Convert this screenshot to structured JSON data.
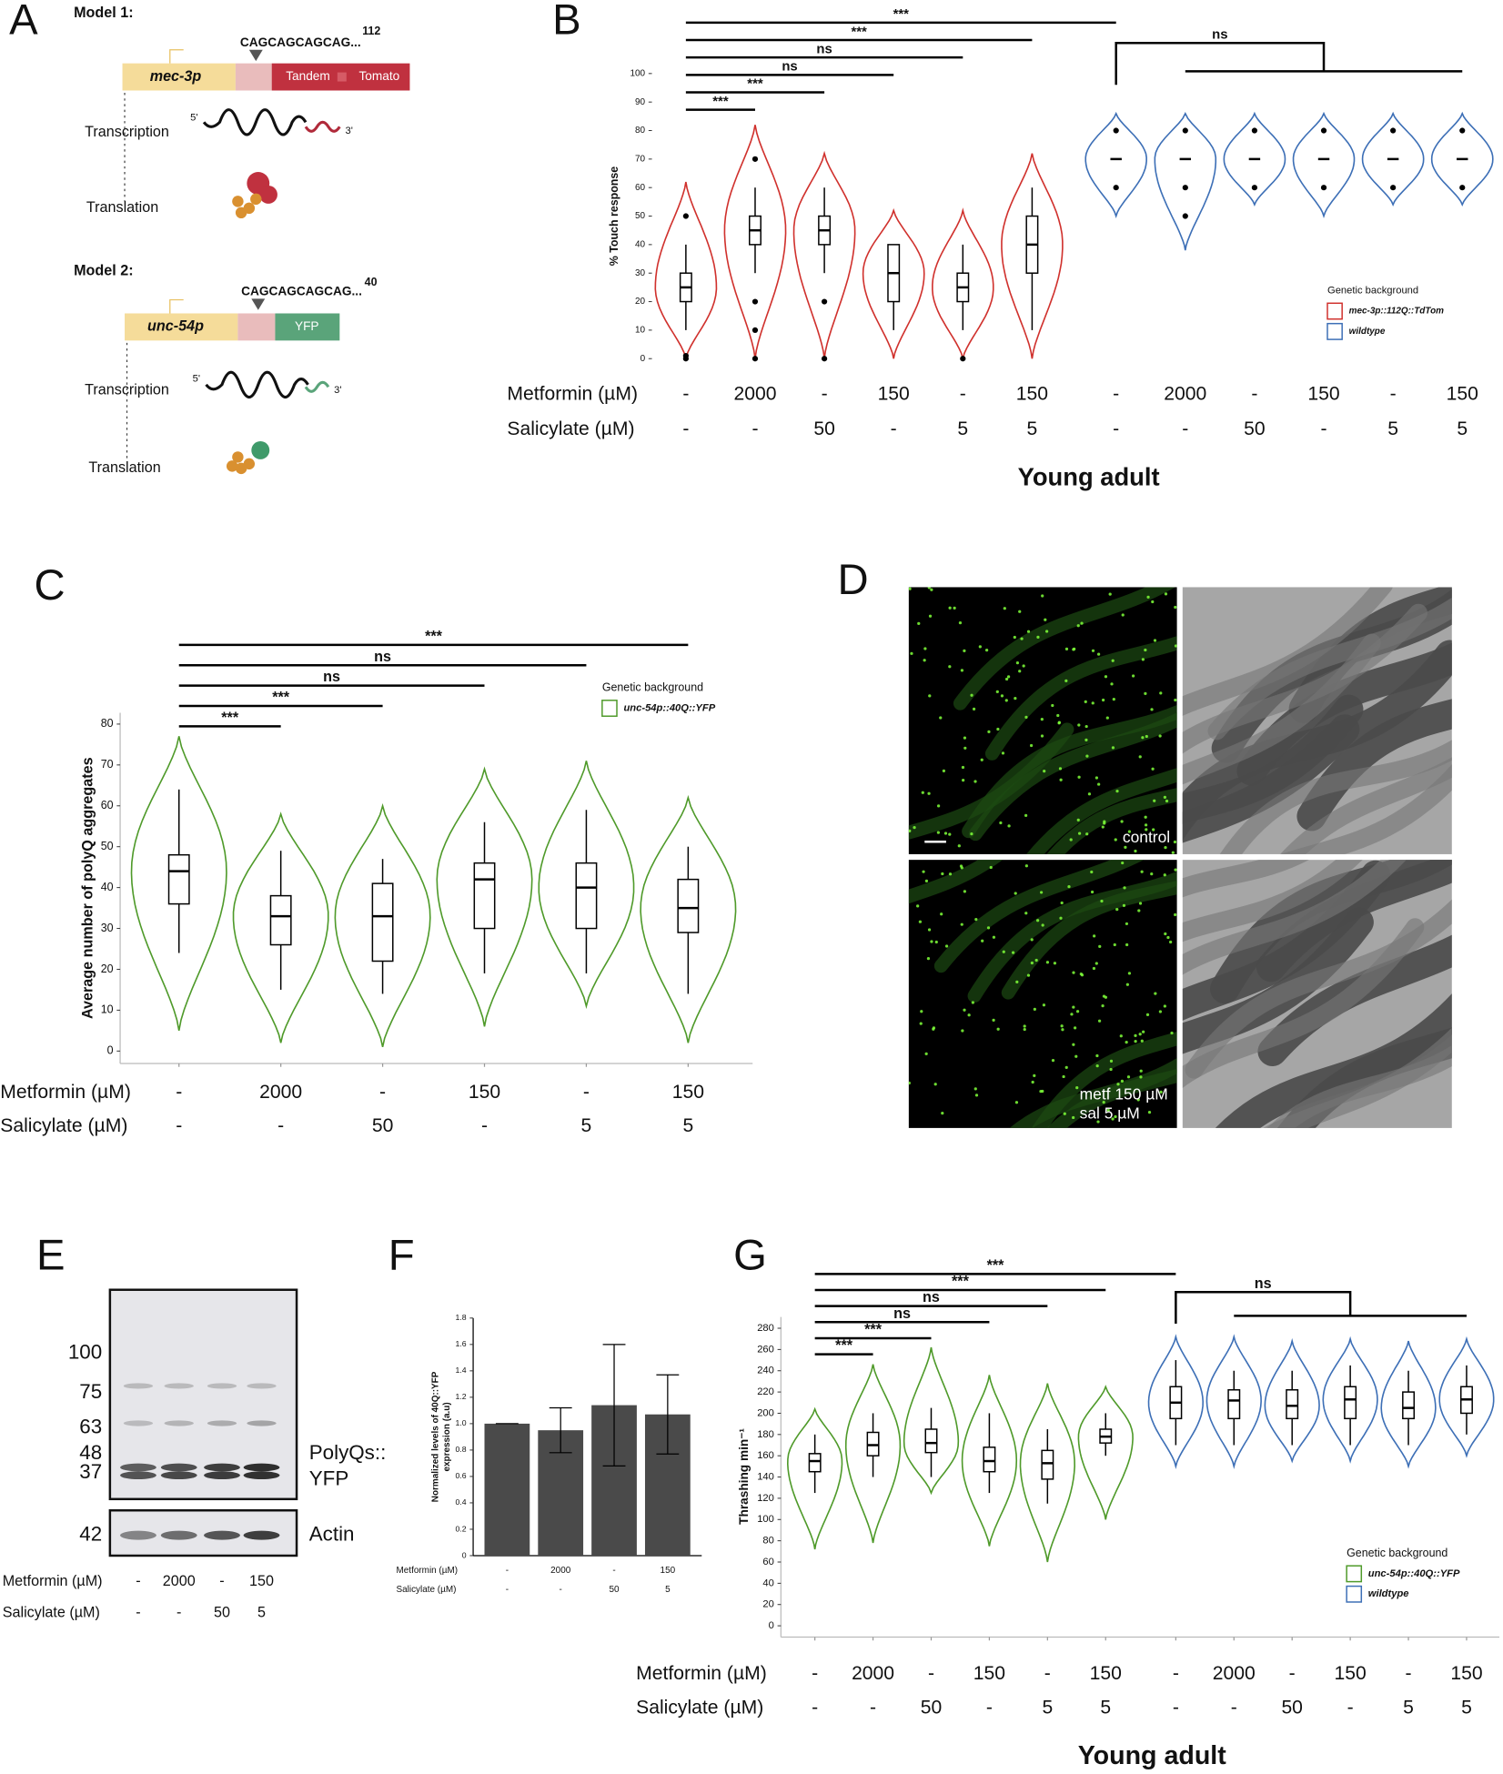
{
  "panels": {
    "labels": [
      "A",
      "B",
      "C",
      "D",
      "E",
      "F",
      "G"
    ]
  },
  "model1": {
    "title": "Model 1:",
    "sequence": "CAGCAGCAGCAG...",
    "repeats": "112",
    "promoter": "mec-3p",
    "tag": [
      "Tandem",
      "Tomato"
    ],
    "steps": [
      "Transcription",
      "Translation"
    ],
    "ends": [
      "5'",
      "3'"
    ]
  },
  "model2": {
    "title": "Model 2:",
    "sequence": "CAGCAGCAGCAG...",
    "repeats": "40",
    "promoter": "unc-54p",
    "tag": "YFP",
    "steps": [
      "Transcription",
      "Translation"
    ],
    "ends": [
      "5'",
      "3'"
    ]
  },
  "microscopy": {
    "top_label": "control",
    "bottom_label": [
      "metf 150 µM",
      "sal 5 µM"
    ]
  },
  "western_blot": {
    "ladder": [
      "100",
      "75",
      "63",
      "48",
      "37"
    ],
    "actin_ladder": "42",
    "polyq_label": [
      "PolyQs::",
      "YFP"
    ],
    "actin_label": "Actin",
    "conditions": [
      {
        "name": "Metformin (µM)",
        "labels": [
          "-",
          "2000",
          "-",
          "150"
        ]
      },
      {
        "name": "Salicylate (µM)",
        "labels": [
          "-",
          "-",
          "50",
          "5"
        ]
      }
    ]
  },
  "chart_data": [
    {
      "type": "violin",
      "ylabel": "% Touch response",
      "xlabel": "Young adult",
      "ylim": [
        0,
        100
      ],
      "yticks": [
        0,
        10,
        20,
        30,
        40,
        50,
        60,
        70,
        80,
        90,
        100
      ],
      "legend_title": "Genetic background",
      "series": [
        {
          "name": "mec-3p::112Q::TdTom",
          "color": "#d0312d",
          "groups": [
            {
              "low": 10,
              "q1": 20,
              "median": 25,
              "q3": 30,
              "high": 40,
              "range": [
                0,
                62
              ],
              "outliers": [
                0,
                1,
                50
              ]
            },
            {
              "low": 30,
              "q1": 40,
              "median": 45,
              "q3": 50,
              "high": 60,
              "range": [
                0,
                82
              ],
              "outliers": [
                0,
                10,
                20,
                70
              ]
            },
            {
              "low": 30,
              "q1": 40,
              "median": 45,
              "q3": 50,
              "high": 60,
              "range": [
                0,
                72
              ],
              "outliers": [
                0,
                20
              ]
            },
            {
              "low": 10,
              "q1": 20,
              "median": 30,
              "q3": 40,
              "high": 40,
              "range": [
                0,
                52
              ]
            },
            {
              "low": 10,
              "q1": 20,
              "median": 25,
              "q3": 30,
              "high": 40,
              "range": [
                0,
                52
              ],
              "outliers": [
                0
              ]
            },
            {
              "low": 10,
              "q1": 30,
              "median": 40,
              "q3": 50,
              "high": 60,
              "range": [
                0,
                72
              ]
            }
          ]
        },
        {
          "name": "wildtype",
          "color": "#3d6fb6",
          "groups": [
            {
              "low": 70,
              "q1": 70,
              "median": 70,
              "q3": 70,
              "high": 70,
              "range": [
                50,
                86
              ],
              "outliers": [
                60,
                80
              ]
            },
            {
              "low": 70,
              "q1": 70,
              "median": 70,
              "q3": 70,
              "high": 70,
              "range": [
                38,
                86
              ],
              "outliers": [
                50,
                60,
                80
              ]
            },
            {
              "low": 70,
              "q1": 70,
              "median": 70,
              "q3": 70,
              "high": 70,
              "range": [
                54,
                86
              ],
              "outliers": [
                60,
                80
              ]
            },
            {
              "low": 70,
              "q1": 70,
              "median": 70,
              "q3": 70,
              "high": 70,
              "range": [
                50,
                86
              ],
              "outliers": [
                60,
                80
              ]
            },
            {
              "low": 70,
              "q1": 70,
              "median": 70,
              "q3": 70,
              "high": 70,
              "range": [
                54,
                86
              ],
              "outliers": [
                60,
                80
              ]
            },
            {
              "low": 70,
              "q1": 70,
              "median": 70,
              "q3": 70,
              "high": 70,
              "range": [
                54,
                86
              ],
              "outliers": [
                60,
                80
              ]
            }
          ]
        }
      ],
      "conditions": [
        {
          "name": "Metformin (µM)",
          "labels": [
            "-",
            "2000",
            "-",
            "150",
            "-",
            "150",
            "-",
            "2000",
            "-",
            "150",
            "-",
            "150"
          ]
        },
        {
          "name": "Salicylate (µM)",
          "labels": [
            "-",
            "-",
            "50",
            "-",
            "5",
            "5",
            "-",
            "-",
            "50",
            "-",
            "5",
            "5"
          ]
        }
      ],
      "comparisons": [
        {
          "groups": [
            0,
            1
          ],
          "label": "***"
        },
        {
          "groups": [
            0,
            2
          ],
          "label": "***"
        },
        {
          "groups": [
            0,
            3
          ],
          "label": "ns"
        },
        {
          "groups": [
            0,
            4
          ],
          "label": "ns"
        },
        {
          "groups": [
            0,
            5
          ],
          "label": "***"
        },
        {
          "groups": [
            0,
            6
          ],
          "label": "***"
        },
        {
          "groups": [
            6,
            7,
            8,
            9,
            10,
            11
          ],
          "label": "ns"
        }
      ]
    },
    {
      "type": "violin",
      "ylabel": "Average number of polyQ aggregates",
      "ylim": [
        0,
        80
      ],
      "yticks": [
        0,
        10,
        20,
        30,
        40,
        50,
        60,
        70,
        80
      ],
      "legend_title": "Genetic background",
      "series": [
        {
          "name": "unc-54p::40Q::YFP",
          "color": "#4f9a2a",
          "groups": [
            {
              "low": 24,
              "q1": 36,
              "median": 44,
              "q3": 48,
              "high": 64,
              "range": [
                5,
                77
              ]
            },
            {
              "low": 15,
              "q1": 26,
              "median": 33,
              "q3": 38,
              "high": 49,
              "range": [
                2,
                58
              ]
            },
            {
              "low": 14,
              "q1": 22,
              "median": 33,
              "q3": 41,
              "high": 47,
              "range": [
                1,
                60
              ]
            },
            {
              "low": 19,
              "q1": 30,
              "median": 42,
              "q3": 46,
              "high": 56,
              "range": [
                6,
                69
              ]
            },
            {
              "low": 19,
              "q1": 30,
              "median": 40,
              "q3": 46,
              "high": 59,
              "range": [
                11,
                71
              ]
            },
            {
              "low": 14,
              "q1": 29,
              "median": 35,
              "q3": 42,
              "high": 50,
              "range": [
                2,
                62
              ]
            }
          ]
        }
      ],
      "conditions": [
        {
          "name": "Metformin (µM)",
          "labels": [
            "-",
            "2000",
            "-",
            "150",
            "-",
            "150"
          ]
        },
        {
          "name": "Salicylate (µM)",
          "labels": [
            "-",
            "-",
            "50",
            "-",
            "5",
            "5"
          ]
        }
      ],
      "comparisons": [
        {
          "groups": [
            0,
            1
          ],
          "label": "***"
        },
        {
          "groups": [
            0,
            2
          ],
          "label": "***"
        },
        {
          "groups": [
            0,
            3
          ],
          "label": "ns"
        },
        {
          "groups": [
            0,
            4
          ],
          "label": "ns"
        },
        {
          "groups": [
            0,
            5
          ],
          "label": "***"
        }
      ]
    },
    {
      "type": "bar",
      "ylabel": [
        "Normalized levels of 40Q::YFP",
        "expression (a.u)"
      ],
      "ylim": [
        0,
        1.8
      ],
      "yticks": [
        0,
        0.2,
        0.4,
        0.6,
        0.8,
        {
          "value": 1,
          "label": "1.0"
        },
        1.2,
        1.4,
        1.6,
        1.8
      ],
      "values": [
        1.0,
        0.95,
        1.14,
        1.07
      ],
      "errors": [
        0,
        0.17,
        0.46,
        0.3
      ],
      "color": "#4a4a4a",
      "conditions": [
        {
          "name": "Metformin (µM)",
          "labels": [
            "-",
            "2000",
            "-",
            "150"
          ]
        },
        {
          "name": "Salicylate (µM)",
          "labels": [
            "-",
            "-",
            "50",
            "5"
          ]
        }
      ]
    },
    {
      "type": "violin",
      "ylabel": "Thrashing min⁻¹",
      "xlabel": "Young adult",
      "ylim": [
        0,
        280
      ],
      "yticks": [
        0,
        20,
        40,
        60,
        80,
        100,
        120,
        140,
        160,
        180,
        200,
        220,
        240,
        260,
        280
      ],
      "legend_title": "Genetic background",
      "series": [
        {
          "name": "unc-54p::40Q::YFP",
          "color": "#4f9a2a",
          "groups": [
            {
              "low": 125,
              "q1": 145,
              "median": 155,
              "q3": 162,
              "high": 180,
              "range": [
                72,
                204
              ]
            },
            {
              "low": 140,
              "q1": 160,
              "median": 170,
              "q3": 182,
              "high": 200,
              "range": [
                78,
                246
              ]
            },
            {
              "low": 140,
              "q1": 163,
              "median": 172,
              "q3": 185,
              "high": 205,
              "range": [
                125,
                262
              ]
            },
            {
              "low": 125,
              "q1": 145,
              "median": 155,
              "q3": 168,
              "high": 200,
              "range": [
                75,
                236
              ]
            },
            {
              "low": 115,
              "q1": 138,
              "median": 153,
              "q3": 165,
              "high": 185,
              "range": [
                60,
                228
              ]
            },
            {
              "low": 160,
              "q1": 172,
              "median": 178,
              "q3": 185,
              "high": 200,
              "range": [
                100,
                225
              ]
            }
          ]
        },
        {
          "name": "wildtype",
          "color": "#3d6fb6",
          "groups": [
            {
              "low": 170,
              "q1": 195,
              "median": 210,
              "q3": 225,
              "high": 250,
              "range": [
                150,
                272
              ]
            },
            {
              "low": 170,
              "q1": 195,
              "median": 212,
              "q3": 222,
              "high": 240,
              "range": [
                150,
                272
              ]
            },
            {
              "low": 170,
              "q1": 195,
              "median": 207,
              "q3": 222,
              "high": 240,
              "range": [
                155,
                268
              ]
            },
            {
              "low": 170,
              "q1": 195,
              "median": 213,
              "q3": 225,
              "high": 245,
              "range": [
                155,
                270
              ]
            },
            {
              "low": 170,
              "q1": 195,
              "median": 205,
              "q3": 220,
              "high": 240,
              "range": [
                150,
                268
              ]
            },
            {
              "low": 180,
              "q1": 200,
              "median": 213,
              "q3": 225,
              "high": 245,
              "range": [
                160,
                270
              ]
            }
          ]
        }
      ],
      "conditions": [
        {
          "name": "Metformin (µM)",
          "labels": [
            "-",
            "2000",
            "-",
            "150",
            "-",
            "150",
            "-",
            "2000",
            "-",
            "150",
            "-",
            "150"
          ]
        },
        {
          "name": "Salicylate (µM)",
          "labels": [
            "-",
            "-",
            "50",
            "-",
            "5",
            "5",
            "-",
            "-",
            "50",
            "-",
            "5",
            "5"
          ]
        }
      ],
      "comparisons": [
        {
          "groups": [
            0,
            1
          ],
          "label": "***"
        },
        {
          "groups": [
            0,
            2
          ],
          "label": "***"
        },
        {
          "groups": [
            0,
            3
          ],
          "label": "ns"
        },
        {
          "groups": [
            0,
            4
          ],
          "label": "ns"
        },
        {
          "groups": [
            0,
            5
          ],
          "label": "***"
        },
        {
          "groups": [
            0,
            6
          ],
          "label": "***"
        },
        {
          "groups": [
            6,
            7,
            8,
            9,
            10,
            11
          ],
          "label": "ns"
        }
      ]
    }
  ]
}
